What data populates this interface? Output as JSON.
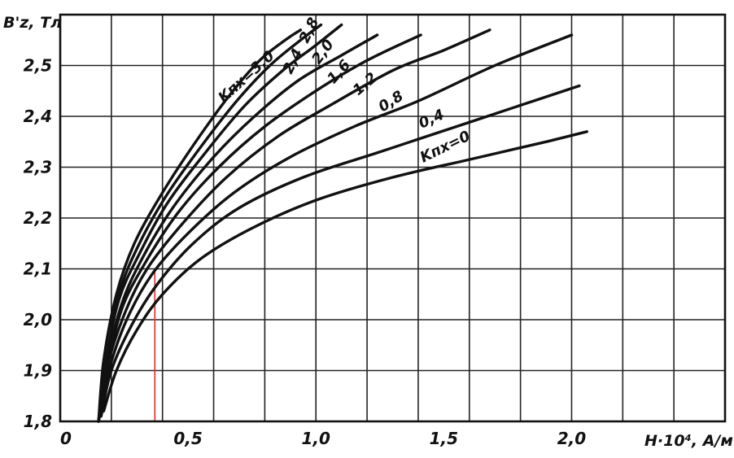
{
  "chart_data": {
    "type": "line",
    "title": "",
    "ylabel": "B'z, Тл",
    "xlabel": "H·10⁴, A/м",
    "xlim": [
      0,
      2.6
    ],
    "ylim": [
      1.8,
      2.6
    ],
    "x_tick_labels": [
      "0",
      "0,5",
      "1,0",
      "1,5",
      "2,0"
    ],
    "y_tick_labels": [
      "1,8",
      "1,9",
      "2,0",
      "2,1",
      "2,2",
      "2,3",
      "2,4",
      "2,5"
    ],
    "grid": true,
    "marker_x": 0.37,
    "series": [
      {
        "name": "Kпх=0",
        "x": [
          0.17,
          0.22,
          0.3,
          0.4,
          0.55,
          0.75,
          1.0,
          1.3,
          1.6,
          1.9,
          2.06
        ],
        "y": [
          1.82,
          1.9,
          1.98,
          2.05,
          2.12,
          2.18,
          2.235,
          2.28,
          2.315,
          2.35,
          2.37
        ]
      },
      {
        "name": "0,4",
        "x": [
          0.16,
          0.2,
          0.28,
          0.38,
          0.52,
          0.7,
          0.95,
          1.25,
          1.55,
          1.85,
          2.03
        ],
        "y": [
          1.81,
          1.9,
          1.99,
          2.07,
          2.15,
          2.22,
          2.28,
          2.33,
          2.38,
          2.43,
          2.46
        ]
      },
      {
        "name": "0,8",
        "x": [
          0.15,
          0.19,
          0.26,
          0.36,
          0.5,
          0.68,
          0.9,
          1.15,
          1.4,
          1.7,
          2.0
        ],
        "y": [
          1.8,
          1.9,
          2.0,
          2.09,
          2.17,
          2.25,
          2.32,
          2.38,
          2.43,
          2.5,
          2.56
        ]
      },
      {
        "name": "1,2",
        "x": [
          0.15,
          0.18,
          0.25,
          0.34,
          0.48,
          0.65,
          0.85,
          1.05,
          1.3,
          1.5,
          1.68
        ],
        "y": [
          1.8,
          1.9,
          2.01,
          2.1,
          2.19,
          2.28,
          2.36,
          2.42,
          2.49,
          2.53,
          2.57
        ]
      },
      {
        "name": "1,6",
        "x": [
          0.15,
          0.18,
          0.24,
          0.33,
          0.46,
          0.62,
          0.8,
          1.0,
          1.2,
          1.41
        ],
        "y": [
          1.8,
          1.9,
          2.02,
          2.11,
          2.21,
          2.3,
          2.38,
          2.45,
          2.51,
          2.56
        ]
      },
      {
        "name": "2,0",
        "x": [
          0.15,
          0.18,
          0.24,
          0.32,
          0.44,
          0.6,
          0.76,
          0.93,
          1.1,
          1.24
        ],
        "y": [
          1.8,
          1.91,
          2.03,
          2.12,
          2.22,
          2.32,
          2.4,
          2.47,
          2.52,
          2.56
        ]
      },
      {
        "name": "2,4",
        "x": [
          0.15,
          0.18,
          0.23,
          0.31,
          0.42,
          0.57,
          0.72,
          0.87,
          1.0,
          1.1
        ],
        "y": [
          1.8,
          1.92,
          2.04,
          2.13,
          2.23,
          2.33,
          2.42,
          2.49,
          2.54,
          2.58
        ]
      },
      {
        "name": "2,8",
        "x": [
          0.15,
          0.18,
          0.23,
          0.3,
          0.41,
          0.55,
          0.69,
          0.82,
          0.94,
          1.02
        ],
        "y": [
          1.8,
          1.92,
          2.05,
          2.14,
          2.24,
          2.34,
          2.43,
          2.5,
          2.55,
          2.58
        ]
      },
      {
        "name": "Kпх=3,0",
        "x": [
          0.15,
          0.17,
          0.22,
          0.29,
          0.4,
          0.53,
          0.66,
          0.78,
          0.88,
          0.94
        ],
        "y": [
          1.8,
          1.92,
          2.05,
          2.15,
          2.25,
          2.35,
          2.44,
          2.51,
          2.55,
          2.57
        ]
      }
    ]
  }
}
